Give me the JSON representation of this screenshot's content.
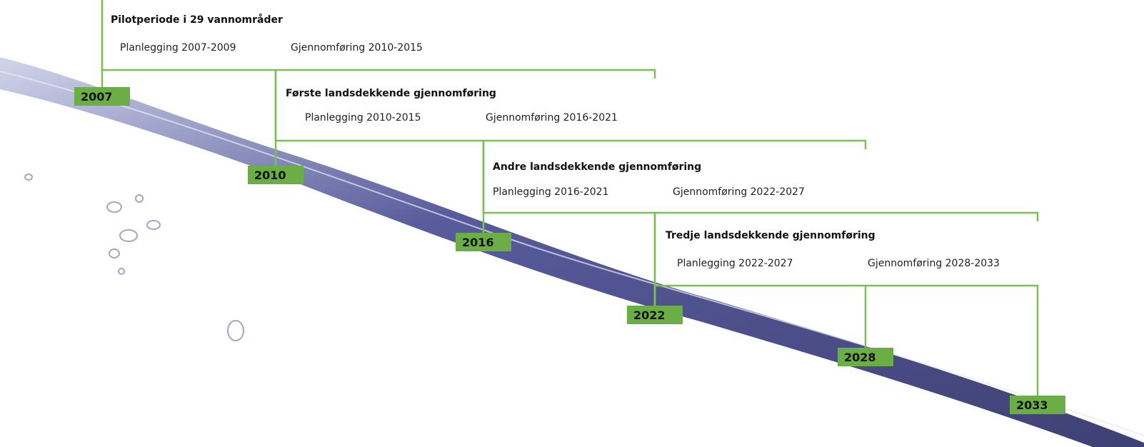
{
  "years": [
    "2007",
    "2010",
    "2016",
    "2022",
    "2028",
    "2033"
  ],
  "phases": [
    {
      "title": "Pilotperiode i 29 vannområder",
      "planning": "Planlegging 2007-2009",
      "implementation": "Gjennomføring 2010-2015"
    },
    {
      "title": "Første landsdekkende gjennomføring",
      "planning": "Planlegging 2010-2015",
      "implementation": "Gjennomføring 2016-2021"
    },
    {
      "title": "Andre landsdekkende gjennomføring",
      "planning": "Planlegging 2016-2021",
      "implementation": "Gjennomføring 2022-2027"
    },
    {
      "title": "Tredje landsdekkende gjennomføring",
      "planning": "Planlegging 2022-2027",
      "implementation": "Gjennomføring 2028-2033"
    }
  ]
}
